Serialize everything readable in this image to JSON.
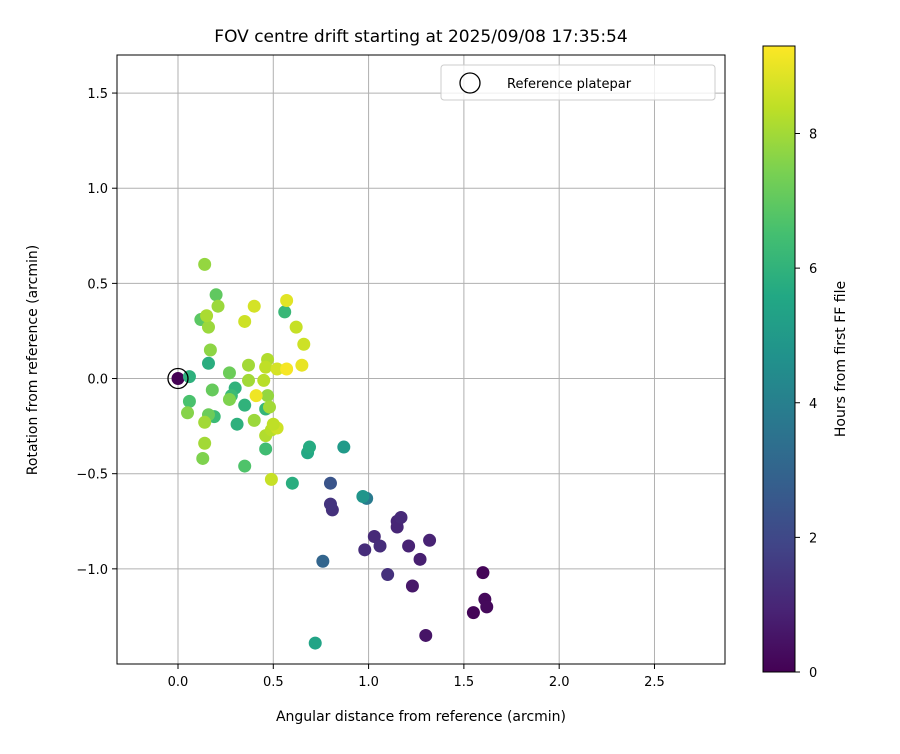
{
  "chart_data": {
    "type": "scatter",
    "title": "FOV centre drift starting at 2025/09/08 17:35:54",
    "xlabel": "Angular distance from reference (arcmin)",
    "ylabel": "Rotation from reference (arcmin)",
    "xlim": [
      -0.32,
      2.87
    ],
    "ylim": [
      -1.5,
      1.7
    ],
    "xticks": [
      0.0,
      0.5,
      1.0,
      1.5,
      2.0,
      2.5
    ],
    "xtick_labels": [
      "0.0",
      "0.5",
      "1.0",
      "1.5",
      "2.0",
      "2.5"
    ],
    "yticks": [
      -1.0,
      -0.5,
      0.0,
      0.5,
      1.0,
      1.5
    ],
    "ytick_labels": [
      "−1.0",
      "−0.5",
      "0.0",
      "0.5",
      "1.0",
      "1.5"
    ],
    "grid": true,
    "legend": {
      "position": "top-right",
      "label": "Reference platepar"
    },
    "colorbar": {
      "label": "Hours from first FF file",
      "colormap": "viridis",
      "range": [
        0,
        9.3
      ],
      "ticks": [
        0,
        2,
        4,
        6,
        8
      ],
      "tick_labels": [
        "0",
        "2",
        "4",
        "6",
        "8"
      ]
    },
    "reference": {
      "x": 0.0,
      "y": 0.0
    },
    "points": [
      {
        "x": 0.0,
        "y": 0.0,
        "t": 0.0
      },
      {
        "x": 1.6,
        "y": -1.02,
        "t": 0.1
      },
      {
        "x": 1.61,
        "y": -1.16,
        "t": 0.2
      },
      {
        "x": 1.62,
        "y": -1.2,
        "t": 0.2
      },
      {
        "x": 1.55,
        "y": -1.23,
        "t": 0.1
      },
      {
        "x": 1.3,
        "y": -1.35,
        "t": 0.5
      },
      {
        "x": 1.23,
        "y": -1.09,
        "t": 0.6
      },
      {
        "x": 1.27,
        "y": -0.95,
        "t": 0.8
      },
      {
        "x": 1.32,
        "y": -0.85,
        "t": 0.9
      },
      {
        "x": 1.21,
        "y": -0.88,
        "t": 0.9
      },
      {
        "x": 1.15,
        "y": -0.78,
        "t": 1.0
      },
      {
        "x": 1.15,
        "y": -0.75,
        "t": 1.0
      },
      {
        "x": 1.17,
        "y": -0.73,
        "t": 1.1
      },
      {
        "x": 1.03,
        "y": -0.83,
        "t": 1.1
      },
      {
        "x": 1.06,
        "y": -0.88,
        "t": 1.2
      },
      {
        "x": 0.98,
        "y": -0.9,
        "t": 1.2
      },
      {
        "x": 1.1,
        "y": -1.03,
        "t": 1.3
      },
      {
        "x": 0.81,
        "y": -0.69,
        "t": 1.3
      },
      {
        "x": 0.8,
        "y": -0.66,
        "t": 1.4
      },
      {
        "x": 0.8,
        "y": -0.55,
        "t": 2.4
      },
      {
        "x": 0.76,
        "y": -0.96,
        "t": 3.0
      },
      {
        "x": 0.99,
        "y": -0.63,
        "t": 3.8
      },
      {
        "x": 0.97,
        "y": -0.62,
        "t": 4.8
      },
      {
        "x": 0.87,
        "y": -0.36,
        "t": 5.0
      },
      {
        "x": 0.72,
        "y": -1.39,
        "t": 5.4
      },
      {
        "x": 0.68,
        "y": -0.39,
        "t": 5.6
      },
      {
        "x": 0.69,
        "y": -0.36,
        "t": 5.7
      },
      {
        "x": 0.6,
        "y": -0.55,
        "t": 5.8
      },
      {
        "x": 0.56,
        "y": 0.35,
        "t": 6.2
      },
      {
        "x": 0.06,
        "y": 0.01,
        "t": 5.9
      },
      {
        "x": 0.16,
        "y": 0.08,
        "t": 5.8
      },
      {
        "x": 0.31,
        "y": -0.24,
        "t": 5.9
      },
      {
        "x": 0.35,
        "y": -0.14,
        "t": 6.0
      },
      {
        "x": 0.3,
        "y": -0.05,
        "t": 6.0
      },
      {
        "x": 0.28,
        "y": -0.09,
        "t": 6.3
      },
      {
        "x": 0.19,
        "y": -0.2,
        "t": 6.3
      },
      {
        "x": 0.46,
        "y": -0.16,
        "t": 6.1
      },
      {
        "x": 0.46,
        "y": -0.37,
        "t": 6.4
      },
      {
        "x": 0.35,
        "y": -0.46,
        "t": 6.7
      },
      {
        "x": 0.06,
        "y": -0.12,
        "t": 6.6
      },
      {
        "x": 0.2,
        "y": 0.44,
        "t": 7.0
      },
      {
        "x": 0.12,
        "y": 0.31,
        "t": 6.9
      },
      {
        "x": 0.27,
        "y": 0.03,
        "t": 7.2
      },
      {
        "x": 0.18,
        "y": -0.06,
        "t": 7.1
      },
      {
        "x": 0.16,
        "y": -0.19,
        "t": 7.2
      },
      {
        "x": 0.27,
        "y": -0.11,
        "t": 7.5
      },
      {
        "x": 0.05,
        "y": -0.18,
        "t": 7.6
      },
      {
        "x": 0.13,
        "y": -0.42,
        "t": 7.5
      },
      {
        "x": 0.14,
        "y": 0.6,
        "t": 7.8
      },
      {
        "x": 0.21,
        "y": 0.38,
        "t": 7.9
      },
      {
        "x": 0.16,
        "y": 0.27,
        "t": 7.9
      },
      {
        "x": 0.17,
        "y": 0.15,
        "t": 7.7
      },
      {
        "x": 0.14,
        "y": -0.23,
        "t": 8.0
      },
      {
        "x": 0.14,
        "y": -0.34,
        "t": 8.0
      },
      {
        "x": 0.15,
        "y": 0.33,
        "t": 8.1
      },
      {
        "x": 0.37,
        "y": 0.07,
        "t": 8.0
      },
      {
        "x": 0.37,
        "y": -0.01,
        "t": 8.0
      },
      {
        "x": 0.4,
        "y": -0.22,
        "t": 7.9
      },
      {
        "x": 0.47,
        "y": -0.09,
        "t": 7.8
      },
      {
        "x": 0.48,
        "y": -0.15,
        "t": 8.0
      },
      {
        "x": 0.47,
        "y": 0.1,
        "t": 8.2
      },
      {
        "x": 0.46,
        "y": 0.06,
        "t": 8.4
      },
      {
        "x": 0.45,
        "y": -0.01,
        "t": 8.3
      },
      {
        "x": 0.46,
        "y": -0.3,
        "t": 8.2
      },
      {
        "x": 0.49,
        "y": -0.27,
        "t": 8.3
      },
      {
        "x": 0.49,
        "y": -0.53,
        "t": 8.5
      },
      {
        "x": 0.35,
        "y": 0.3,
        "t": 8.6
      },
      {
        "x": 0.4,
        "y": 0.38,
        "t": 8.7
      },
      {
        "x": 0.52,
        "y": 0.05,
        "t": 8.7
      },
      {
        "x": 0.52,
        "y": -0.26,
        "t": 8.6
      },
      {
        "x": 0.5,
        "y": -0.24,
        "t": 8.4
      },
      {
        "x": 0.62,
        "y": 0.27,
        "t": 8.5
      },
      {
        "x": 0.66,
        "y": 0.18,
        "t": 8.6
      },
      {
        "x": 0.57,
        "y": 0.41,
        "t": 8.9
      },
      {
        "x": 0.65,
        "y": 0.07,
        "t": 9.0
      },
      {
        "x": 0.41,
        "y": -0.09,
        "t": 9.1
      },
      {
        "x": 0.57,
        "y": 0.05,
        "t": 9.2
      }
    ]
  }
}
